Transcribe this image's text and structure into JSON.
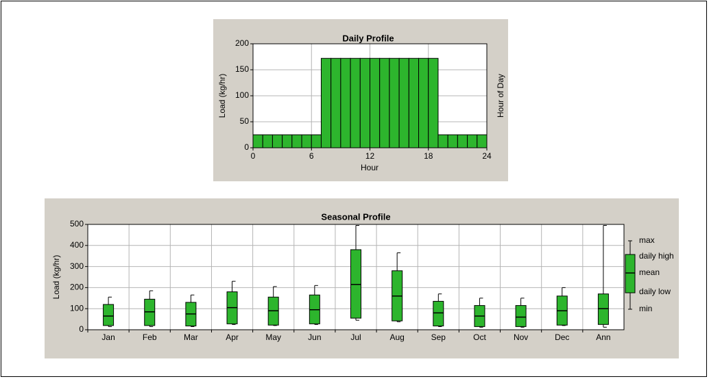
{
  "chart_data": [
    {
      "type": "histogram",
      "title": "Daily Profile",
      "x_label": "Hour",
      "y_label": "Load (kg/hr)",
      "y2_label": "Hour of Day",
      "bins": [
        0,
        1,
        2,
        3,
        4,
        5,
        6,
        7,
        8,
        9,
        10,
        11,
        12,
        13,
        14,
        15,
        16,
        17,
        18,
        19,
        20,
        21,
        22,
        23,
        24
      ],
      "values": [
        25,
        25,
        25,
        25,
        25,
        25,
        25,
        172,
        172,
        172,
        172,
        172,
        172,
        172,
        172,
        172,
        172,
        172,
        172,
        25,
        25,
        25,
        25,
        25
      ],
      "color": "#2db52d",
      "xlim": [
        0,
        24
      ],
      "xticks": [
        0,
        6,
        12,
        18,
        24
      ],
      "ylim": [
        0,
        200
      ],
      "yticks": [
        0,
        50,
        100,
        150,
        200
      ],
      "grid": true
    },
    {
      "type": "box",
      "title": "Seasonal Profile",
      "y_label": "Load (kg/hr)",
      "categories": [
        "Jan",
        "Feb",
        "Mar",
        "Apr",
        "May",
        "Jun",
        "Jul",
        "Aug",
        "Sep",
        "Oct",
        "Nov",
        "Dec",
        "Ann"
      ],
      "series": [
        {
          "name": "max",
          "values": [
            155,
            185,
            165,
            230,
            205,
            210,
            495,
            365,
            170,
            150,
            150,
            200,
            495
          ]
        },
        {
          "name": "daily high",
          "values": [
            120,
            145,
            130,
            180,
            155,
            165,
            380,
            280,
            135,
            115,
            115,
            160,
            170
          ]
        },
        {
          "name": "mean",
          "values": [
            65,
            85,
            75,
            105,
            90,
            95,
            215,
            160,
            80,
            65,
            60,
            90,
            100
          ]
        },
        {
          "name": "daily low",
          "values": [
            20,
            20,
            18,
            28,
            22,
            28,
            55,
            42,
            18,
            15,
            15,
            22,
            25
          ]
        },
        {
          "name": "min",
          "values": [
            15,
            15,
            15,
            25,
            20,
            25,
            45,
            38,
            15,
            12,
            12,
            20,
            12
          ]
        }
      ],
      "color": "#2db52d",
      "ylim": [
        0,
        500
      ],
      "yticks": [
        0,
        100,
        200,
        300,
        400,
        500
      ],
      "grid": true,
      "legend": "right"
    }
  ]
}
